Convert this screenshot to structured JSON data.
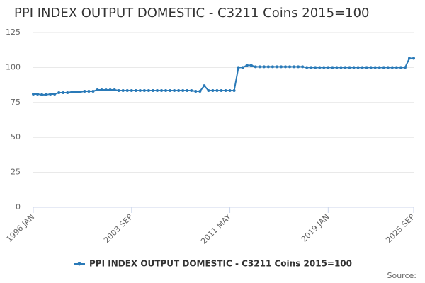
{
  "chart_data": {
    "type": "line",
    "title": "PPI INDEX OUTPUT DOMESTIC - C3211 Coins 2015=100",
    "source": "Source:",
    "categories": [
      "1996 JAN",
      null,
      null,
      null,
      null,
      null,
      null,
      null,
      null,
      null,
      null,
      null,
      null,
      null,
      null,
      null,
      null,
      null,
      null,
      null,
      null,
      null,
      null,
      "2003 SEP",
      null,
      null,
      null,
      null,
      null,
      null,
      null,
      null,
      null,
      null,
      null,
      null,
      null,
      null,
      null,
      null,
      null,
      null,
      null,
      null,
      null,
      null,
      "2011 MAY",
      null,
      null,
      null,
      null,
      null,
      null,
      null,
      null,
      null,
      null,
      null,
      null,
      null,
      null,
      null,
      null,
      null,
      null,
      null,
      null,
      null,
      null,
      "2019 JAN",
      null,
      null,
      null,
      null,
      null,
      null,
      null,
      null,
      null,
      null,
      null,
      null,
      null,
      null,
      null,
      null,
      null,
      null,
      null,
      "2025 SEP"
    ],
    "series": [
      {
        "name": "PPI INDEX OUTPUT DOMESTIC - C3211 Coins 2015=100",
        "color": "#2a7ab8",
        "values": [
          81,
          81,
          80.5,
          80.5,
          81,
          81,
          82,
          82,
          82,
          82.5,
          82.5,
          82.5,
          83,
          83,
          83,
          84,
          84,
          84,
          84,
          84,
          83.5,
          83.5,
          83.5,
          83.5,
          83.5,
          83.5,
          83.5,
          83.5,
          83.5,
          83.5,
          83.5,
          83.5,
          83.5,
          83.5,
          83.5,
          83.5,
          83.5,
          83.5,
          83,
          83,
          87,
          83.5,
          83.5,
          83.5,
          83.5,
          83.5,
          83.5,
          83.5,
          100,
          100,
          101.5,
          101.5,
          100.5,
          100.5,
          100.5,
          100.5,
          100.5,
          100.5,
          100.5,
          100.5,
          100.5,
          100.5,
          100.5,
          100.5,
          100,
          100,
          100,
          100,
          100,
          100,
          100,
          100,
          100,
          100,
          100,
          100,
          100,
          100,
          100,
          100,
          100,
          100,
          100,
          100,
          100,
          100,
          100,
          100,
          106.5,
          106.5
        ]
      }
    ],
    "ylim": [
      0,
      125
    ],
    "yticks": [
      0,
      25,
      50,
      75,
      100,
      125
    ],
    "grid": true,
    "legend": "bottom"
  }
}
